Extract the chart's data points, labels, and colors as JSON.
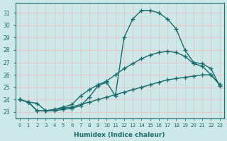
{
  "xlabel": "Humidex (Indice chaleur)",
  "ylabel": "",
  "background_color": "#cce8e8",
  "grid_color": "#e8c8c8",
  "line_color": "#1a6b6b",
  "xlim": [
    -0.5,
    23.5
  ],
  "ylim": [
    22.5,
    31.8
  ],
  "xticks": [
    0,
    1,
    2,
    3,
    4,
    5,
    6,
    7,
    8,
    9,
    10,
    11,
    12,
    13,
    14,
    15,
    16,
    17,
    18,
    19,
    20,
    21,
    22,
    23
  ],
  "yticks": [
    23,
    24,
    25,
    26,
    27,
    28,
    29,
    30,
    31
  ],
  "curve1_x": [
    0,
    1,
    2,
    3,
    4,
    5,
    6,
    7,
    8,
    9,
    10,
    11,
    12,
    13,
    14,
    15,
    16,
    17,
    18,
    19,
    20,
    21,
    22,
    23
  ],
  "curve1_y": [
    24.0,
    23.8,
    23.7,
    23.1,
    23.1,
    23.2,
    23.3,
    23.5,
    24.2,
    25.1,
    25.4,
    24.3,
    29.0,
    30.5,
    31.2,
    31.2,
    31.0,
    30.5,
    29.7,
    28.0,
    27.0,
    26.9,
    26.5,
    25.1
  ],
  "curve2_x": [
    0,
    1,
    2,
    3,
    4,
    5,
    6,
    7,
    8,
    9,
    10,
    11,
    12,
    13,
    14,
    15,
    16,
    17,
    18,
    19,
    20,
    21,
    22,
    23
  ],
  "curve2_y": [
    24.0,
    23.8,
    23.1,
    23.1,
    23.2,
    23.4,
    23.6,
    24.3,
    24.8,
    25.2,
    25.5,
    26.0,
    26.5,
    26.9,
    27.3,
    27.6,
    27.8,
    27.9,
    27.8,
    27.5,
    26.9,
    26.7,
    26.0,
    25.2
  ],
  "curve3_x": [
    0,
    1,
    2,
    3,
    4,
    5,
    6,
    7,
    8,
    9,
    10,
    11,
    12,
    13,
    14,
    15,
    16,
    17,
    18,
    19,
    20,
    21,
    22,
    23
  ],
  "curve3_y": [
    24.0,
    23.8,
    23.1,
    23.1,
    23.2,
    23.3,
    23.4,
    23.6,
    23.8,
    24.0,
    24.2,
    24.4,
    24.6,
    24.8,
    25.0,
    25.2,
    25.4,
    25.6,
    25.7,
    25.8,
    25.9,
    26.0,
    26.0,
    25.2
  ]
}
